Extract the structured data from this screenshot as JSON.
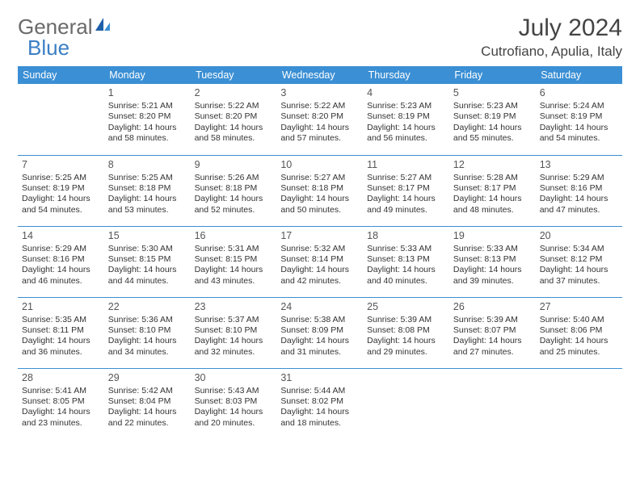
{
  "brand": {
    "part1": "General",
    "part2": "Blue"
  },
  "title": "July 2024",
  "location": "Cutrofiano, Apulia, Italy",
  "colors": {
    "header_bg": "#3b8fd4",
    "header_fg": "#ffffff",
    "border": "#3b8fd4",
    "text": "#333333",
    "brand_gray": "#6a6a6a",
    "brand_blue": "#3b7fc4",
    "background": "#ffffff"
  },
  "fonts": {
    "title_size": 30,
    "location_size": 17,
    "weekday_size": 12.5,
    "daynum_size": 12.5,
    "cell_size": 10.5
  },
  "weekdays": [
    "Sunday",
    "Monday",
    "Tuesday",
    "Wednesday",
    "Thursday",
    "Friday",
    "Saturday"
  ],
  "weeks": [
    [
      null,
      {
        "n": "1",
        "sr": "Sunrise: 5:21 AM",
        "ss": "Sunset: 8:20 PM",
        "d1": "Daylight: 14 hours",
        "d2": "and 58 minutes."
      },
      {
        "n": "2",
        "sr": "Sunrise: 5:22 AM",
        "ss": "Sunset: 8:20 PM",
        "d1": "Daylight: 14 hours",
        "d2": "and 58 minutes."
      },
      {
        "n": "3",
        "sr": "Sunrise: 5:22 AM",
        "ss": "Sunset: 8:20 PM",
        "d1": "Daylight: 14 hours",
        "d2": "and 57 minutes."
      },
      {
        "n": "4",
        "sr": "Sunrise: 5:23 AM",
        "ss": "Sunset: 8:19 PM",
        "d1": "Daylight: 14 hours",
        "d2": "and 56 minutes."
      },
      {
        "n": "5",
        "sr": "Sunrise: 5:23 AM",
        "ss": "Sunset: 8:19 PM",
        "d1": "Daylight: 14 hours",
        "d2": "and 55 minutes."
      },
      {
        "n": "6",
        "sr": "Sunrise: 5:24 AM",
        "ss": "Sunset: 8:19 PM",
        "d1": "Daylight: 14 hours",
        "d2": "and 54 minutes."
      }
    ],
    [
      {
        "n": "7",
        "sr": "Sunrise: 5:25 AM",
        "ss": "Sunset: 8:19 PM",
        "d1": "Daylight: 14 hours",
        "d2": "and 54 minutes."
      },
      {
        "n": "8",
        "sr": "Sunrise: 5:25 AM",
        "ss": "Sunset: 8:18 PM",
        "d1": "Daylight: 14 hours",
        "d2": "and 53 minutes."
      },
      {
        "n": "9",
        "sr": "Sunrise: 5:26 AM",
        "ss": "Sunset: 8:18 PM",
        "d1": "Daylight: 14 hours",
        "d2": "and 52 minutes."
      },
      {
        "n": "10",
        "sr": "Sunrise: 5:27 AM",
        "ss": "Sunset: 8:18 PM",
        "d1": "Daylight: 14 hours",
        "d2": "and 50 minutes."
      },
      {
        "n": "11",
        "sr": "Sunrise: 5:27 AM",
        "ss": "Sunset: 8:17 PM",
        "d1": "Daylight: 14 hours",
        "d2": "and 49 minutes."
      },
      {
        "n": "12",
        "sr": "Sunrise: 5:28 AM",
        "ss": "Sunset: 8:17 PM",
        "d1": "Daylight: 14 hours",
        "d2": "and 48 minutes."
      },
      {
        "n": "13",
        "sr": "Sunrise: 5:29 AM",
        "ss": "Sunset: 8:16 PM",
        "d1": "Daylight: 14 hours",
        "d2": "and 47 minutes."
      }
    ],
    [
      {
        "n": "14",
        "sr": "Sunrise: 5:29 AM",
        "ss": "Sunset: 8:16 PM",
        "d1": "Daylight: 14 hours",
        "d2": "and 46 minutes."
      },
      {
        "n": "15",
        "sr": "Sunrise: 5:30 AM",
        "ss": "Sunset: 8:15 PM",
        "d1": "Daylight: 14 hours",
        "d2": "and 44 minutes."
      },
      {
        "n": "16",
        "sr": "Sunrise: 5:31 AM",
        "ss": "Sunset: 8:15 PM",
        "d1": "Daylight: 14 hours",
        "d2": "and 43 minutes."
      },
      {
        "n": "17",
        "sr": "Sunrise: 5:32 AM",
        "ss": "Sunset: 8:14 PM",
        "d1": "Daylight: 14 hours",
        "d2": "and 42 minutes."
      },
      {
        "n": "18",
        "sr": "Sunrise: 5:33 AM",
        "ss": "Sunset: 8:13 PM",
        "d1": "Daylight: 14 hours",
        "d2": "and 40 minutes."
      },
      {
        "n": "19",
        "sr": "Sunrise: 5:33 AM",
        "ss": "Sunset: 8:13 PM",
        "d1": "Daylight: 14 hours",
        "d2": "and 39 minutes."
      },
      {
        "n": "20",
        "sr": "Sunrise: 5:34 AM",
        "ss": "Sunset: 8:12 PM",
        "d1": "Daylight: 14 hours",
        "d2": "and 37 minutes."
      }
    ],
    [
      {
        "n": "21",
        "sr": "Sunrise: 5:35 AM",
        "ss": "Sunset: 8:11 PM",
        "d1": "Daylight: 14 hours",
        "d2": "and 36 minutes."
      },
      {
        "n": "22",
        "sr": "Sunrise: 5:36 AM",
        "ss": "Sunset: 8:10 PM",
        "d1": "Daylight: 14 hours",
        "d2": "and 34 minutes."
      },
      {
        "n": "23",
        "sr": "Sunrise: 5:37 AM",
        "ss": "Sunset: 8:10 PM",
        "d1": "Daylight: 14 hours",
        "d2": "and 32 minutes."
      },
      {
        "n": "24",
        "sr": "Sunrise: 5:38 AM",
        "ss": "Sunset: 8:09 PM",
        "d1": "Daylight: 14 hours",
        "d2": "and 31 minutes."
      },
      {
        "n": "25",
        "sr": "Sunrise: 5:39 AM",
        "ss": "Sunset: 8:08 PM",
        "d1": "Daylight: 14 hours",
        "d2": "and 29 minutes."
      },
      {
        "n": "26",
        "sr": "Sunrise: 5:39 AM",
        "ss": "Sunset: 8:07 PM",
        "d1": "Daylight: 14 hours",
        "d2": "and 27 minutes."
      },
      {
        "n": "27",
        "sr": "Sunrise: 5:40 AM",
        "ss": "Sunset: 8:06 PM",
        "d1": "Daylight: 14 hours",
        "d2": "and 25 minutes."
      }
    ],
    [
      {
        "n": "28",
        "sr": "Sunrise: 5:41 AM",
        "ss": "Sunset: 8:05 PM",
        "d1": "Daylight: 14 hours",
        "d2": "and 23 minutes."
      },
      {
        "n": "29",
        "sr": "Sunrise: 5:42 AM",
        "ss": "Sunset: 8:04 PM",
        "d1": "Daylight: 14 hours",
        "d2": "and 22 minutes."
      },
      {
        "n": "30",
        "sr": "Sunrise: 5:43 AM",
        "ss": "Sunset: 8:03 PM",
        "d1": "Daylight: 14 hours",
        "d2": "and 20 minutes."
      },
      {
        "n": "31",
        "sr": "Sunrise: 5:44 AM",
        "ss": "Sunset: 8:02 PM",
        "d1": "Daylight: 14 hours",
        "d2": "and 18 minutes."
      },
      null,
      null,
      null
    ]
  ]
}
